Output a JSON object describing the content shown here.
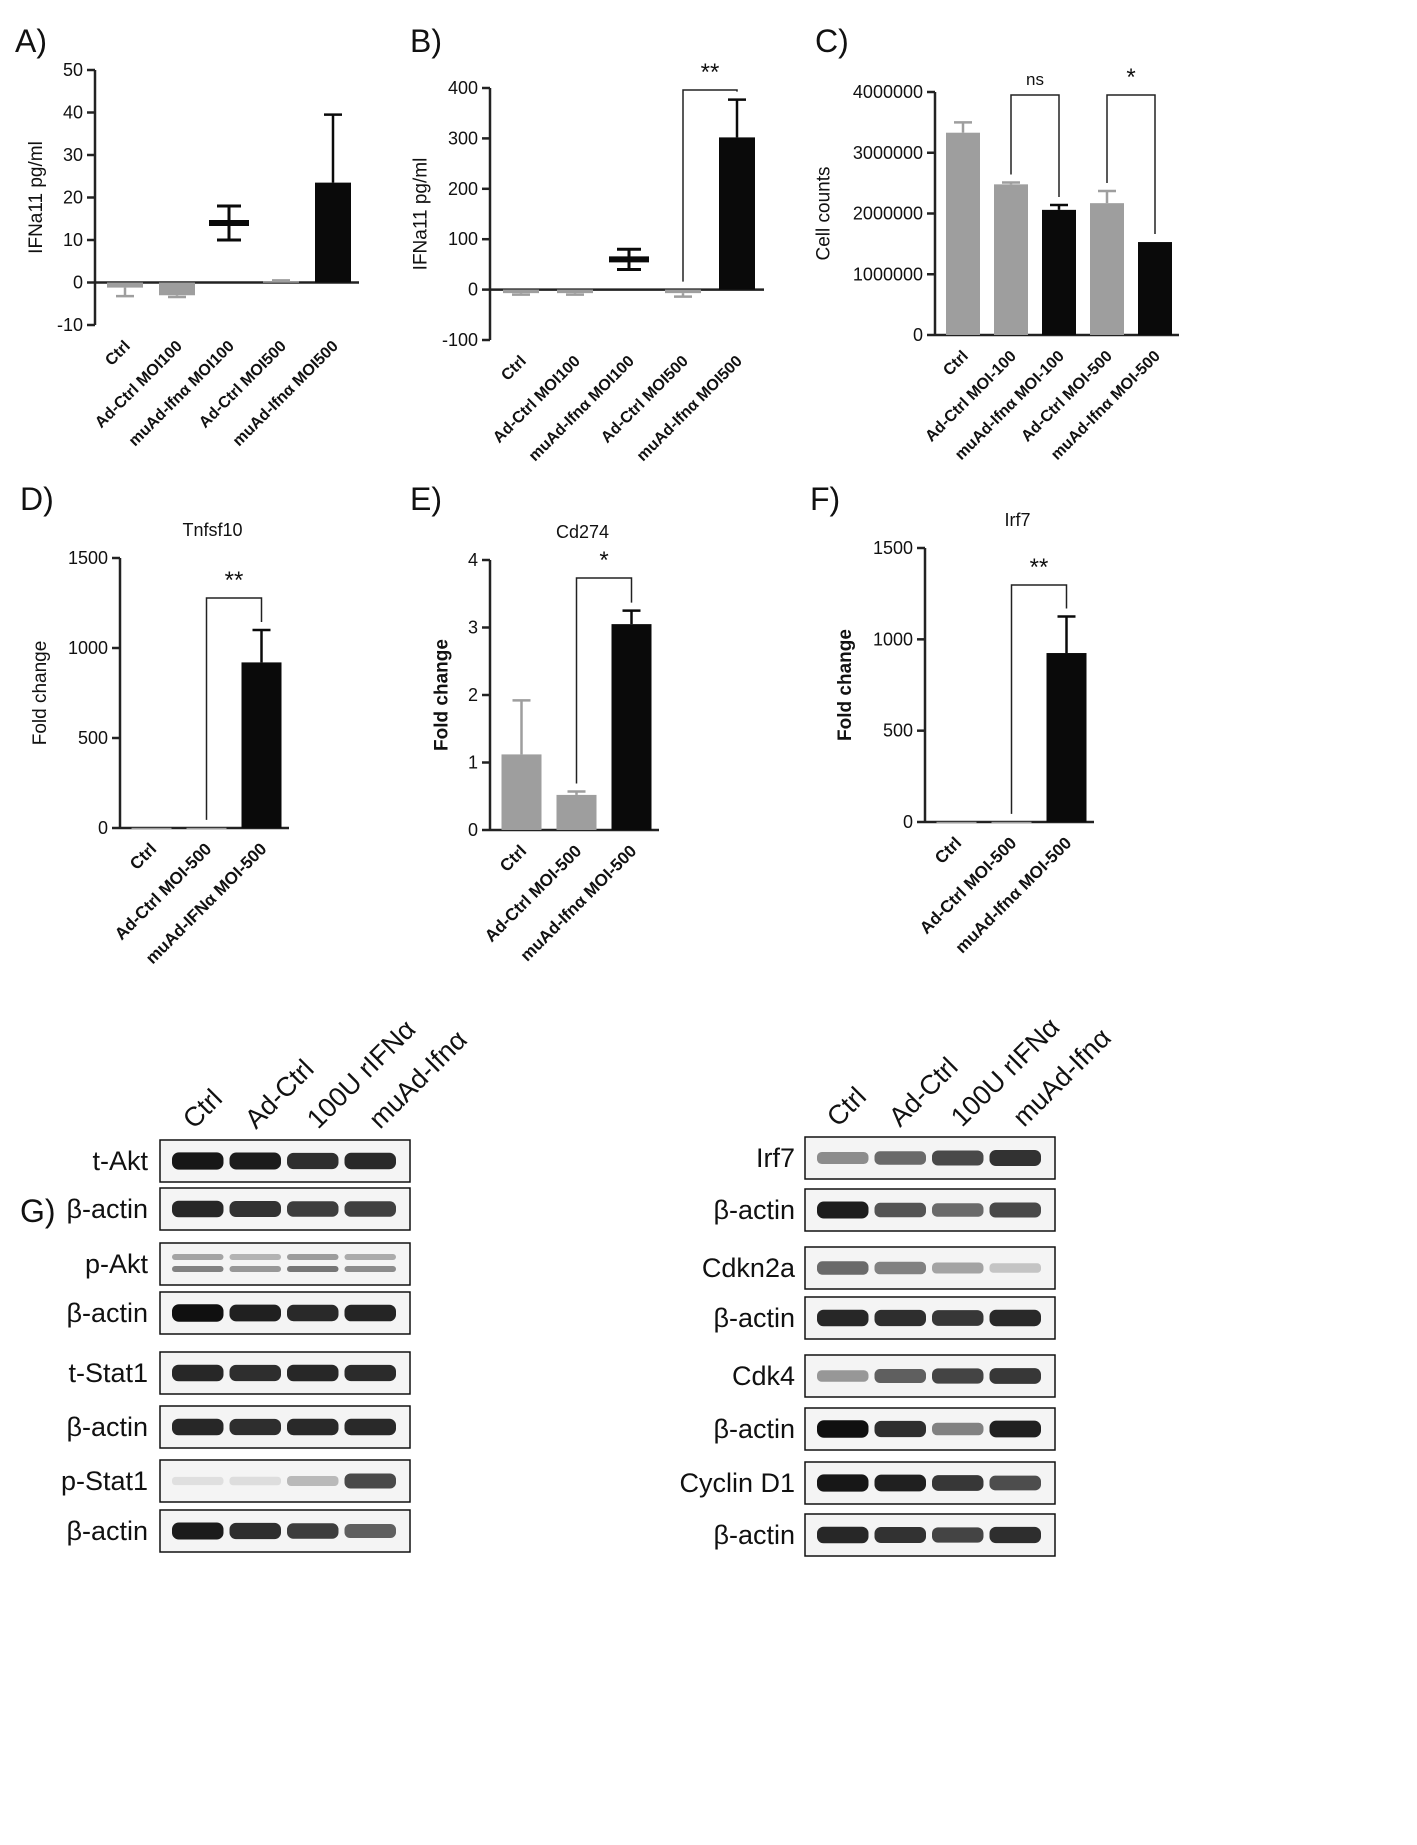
{
  "colors": {
    "gray": "#9e9e9e",
    "black": "#0a0a0a",
    "axis": "#222222"
  },
  "chart_data": [
    {
      "panel": "A)",
      "type": "bar",
      "title": "",
      "ylabel": "IFNa11 pg/ml",
      "ylim": [
        -10,
        50
      ],
      "yticks": [
        -10,
        0,
        10,
        20,
        30,
        40,
        50
      ],
      "categories": [
        "Ctrl",
        "Ad-Ctrl MOI100",
        "muAd-Ifnα MOI100",
        "Ad-Ctrl MOI500",
        "muAd-Ifnα MOI500"
      ],
      "values": [
        -1.2,
        -3,
        14,
        0.3,
        23.5
      ],
      "errors": [
        2,
        0.4,
        4,
        0.2,
        16
      ],
      "styles": [
        "gray-bar",
        "gray-bar",
        "mean-marker",
        "gray-bar",
        "black-bar"
      ],
      "brackets": []
    },
    {
      "panel": "B)",
      "type": "bar",
      "title": "",
      "ylabel": "IFNa11 pg/ml",
      "ylim": [
        -100,
        400
      ],
      "yticks": [
        -100,
        0,
        100,
        200,
        300,
        400
      ],
      "categories": [
        "Ctrl",
        "Ad-Ctrl MOI100",
        "muAd-Ifnα MOI100",
        "Ad-Ctrl MOI500",
        "muAd-Ifnα MOI500"
      ],
      "values": [
        -7,
        -7,
        60,
        -7,
        302
      ],
      "errors": [
        3,
        3,
        20,
        7,
        75
      ],
      "styles": [
        "gray-bar",
        "gray-bar",
        "mean-marker",
        "gray-bar",
        "black-bar"
      ],
      "brackets": [
        {
          "from": 3,
          "to": 4,
          "label": "**"
        }
      ]
    },
    {
      "panel": "C)",
      "type": "bar",
      "title": "",
      "ylabel": "Cell counts",
      "ylim": [
        0,
        4000000
      ],
      "yticks": [
        0,
        1000000,
        2000000,
        3000000,
        4000000
      ],
      "categories": [
        "Ctrl",
        "Ad-Ctrl MOI-100",
        "muAd-Ifnα MOI-100",
        "Ad-Ctrl MOI-500",
        "muAd-Ifnα MOI-500"
      ],
      "values": [
        3330000,
        2480000,
        2060000,
        2170000,
        1530000
      ],
      "errors": [
        170000,
        30000,
        80000,
        200000,
        0
      ],
      "styles": [
        "gray-bar",
        "gray-bar",
        "black-bar",
        "gray-bar",
        "black-bar"
      ],
      "brackets": [
        {
          "from": 1,
          "to": 2,
          "label": "ns"
        },
        {
          "from": 3,
          "to": 4,
          "label": "*"
        }
      ]
    },
    {
      "panel": "D)",
      "type": "bar",
      "title": "Tnfsf10",
      "ylabel": "Fold change",
      "ylim": [
        0,
        1500
      ],
      "yticks": [
        0,
        500,
        1000,
        1500
      ],
      "categories": [
        "Ctrl",
        "Ad-Ctrl MOI-500",
        "muAd-IFNα MOI-500"
      ],
      "values": [
        1,
        1,
        920
      ],
      "errors": [
        0,
        0,
        180
      ],
      "styles": [
        "gray-bar",
        "gray-bar",
        "black-bar"
      ],
      "brackets": [
        {
          "from": 1,
          "to": 2,
          "label": "**"
        }
      ]
    },
    {
      "panel": "E)",
      "type": "bar",
      "title": "Cd274",
      "ylabel": "Fold change",
      "ylim": [
        0,
        4
      ],
      "yticks": [
        0,
        1,
        2,
        3,
        4
      ],
      "categories": [
        "Ctrl",
        "Ad-Ctrl MOI-500",
        "muAd-Ifnα MOI-500"
      ],
      "values": [
        1.12,
        0.52,
        3.05
      ],
      "errors": [
        0.8,
        0.05,
        0.2
      ],
      "styles": [
        "gray-bar",
        "gray-bar",
        "black-bar"
      ],
      "brackets": [
        {
          "from": 1,
          "to": 2,
          "label": "*"
        }
      ]
    },
    {
      "panel": "F)",
      "type": "bar",
      "title": "Irf7",
      "ylabel": "Fold change",
      "ylim": [
        0,
        1500
      ],
      "yticks": [
        0,
        500,
        1000,
        1500
      ],
      "categories": [
        "Ctrl",
        "Ad-Ctrl MOI-500",
        "muAd-Ifnα MOI-500"
      ],
      "values": [
        1,
        1,
        925
      ],
      "errors": [
        0,
        0,
        200
      ],
      "styles": [
        "gray-bar",
        "gray-bar",
        "black-bar"
      ],
      "brackets": [
        {
          "from": 1,
          "to": 2,
          "label": "**"
        }
      ]
    }
  ],
  "blots": {
    "panel": "G)",
    "left": {
      "lanes": [
        "Ctrl",
        "Ad-Ctrl",
        "100U rIFNα",
        "muAd-Ifnα"
      ],
      "rows": [
        {
          "label": "t-Akt",
          "intensity": [
            0.92,
            0.9,
            0.82,
            0.84
          ],
          "double": false
        },
        {
          "label": "β-actin",
          "intensity": [
            0.85,
            0.8,
            0.75,
            0.74
          ],
          "double": false
        },
        {
          "label": "p-Akt",
          "intensity": [
            0.45,
            0.35,
            0.5,
            0.4
          ],
          "double": true
        },
        {
          "label": "β-actin",
          "intensity": [
            0.95,
            0.88,
            0.84,
            0.86
          ],
          "double": false
        },
        {
          "label": "t-Stat1",
          "intensity": [
            0.85,
            0.82,
            0.85,
            0.83
          ],
          "double": false
        },
        {
          "label": "β-actin",
          "intensity": [
            0.85,
            0.82,
            0.84,
            0.84
          ],
          "double": false
        },
        {
          "label": "p-Stat1",
          "intensity": [
            0.03,
            0.04,
            0.2,
            0.7
          ],
          "double": false
        },
        {
          "label": "β-actin",
          "intensity": [
            0.9,
            0.82,
            0.75,
            0.6
          ],
          "double": false
        }
      ]
    },
    "right": {
      "lanes": [
        "Ctrl",
        "Ad-Ctrl",
        "100U rIFNα",
        "muAd-Ifnα"
      ],
      "rows": [
        {
          "label": "Irf7",
          "intensity": [
            0.4,
            0.55,
            0.7,
            0.8
          ],
          "double": false
        },
        {
          "label": "β-actin",
          "intensity": [
            0.9,
            0.65,
            0.55,
            0.7
          ],
          "double": false
        },
        {
          "label": "Cdkn2a",
          "intensity": [
            0.55,
            0.45,
            0.3,
            0.15
          ],
          "double": false
        },
        {
          "label": "β-actin",
          "intensity": [
            0.85,
            0.82,
            0.78,
            0.84
          ],
          "double": false
        },
        {
          "label": "Cdk4",
          "intensity": [
            0.35,
            0.6,
            0.72,
            0.78
          ],
          "double": false
        },
        {
          "label": "β-actin",
          "intensity": [
            0.95,
            0.82,
            0.45,
            0.88
          ],
          "double": false
        },
        {
          "label": "Cyclin D1",
          "intensity": [
            0.92,
            0.88,
            0.78,
            0.68
          ],
          "double": false
        },
        {
          "label": "β-actin",
          "intensity": [
            0.85,
            0.8,
            0.72,
            0.82
          ],
          "double": false
        }
      ]
    }
  }
}
